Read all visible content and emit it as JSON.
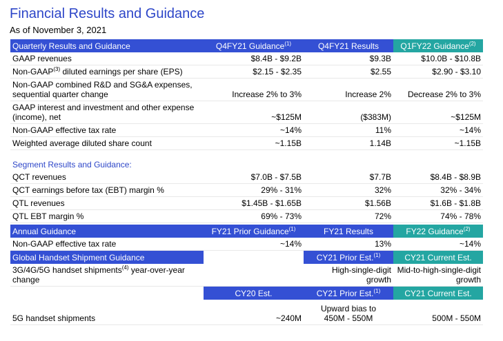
{
  "title": "Financial Results and Guidance",
  "subtitle": "As of November 3, 2021",
  "quarterly": {
    "header": [
      "Quarterly Results and Guidance",
      [
        "Q4FY21 Guidance",
        {
          "sup": "(1)"
        }
      ],
      "Q4FY21 Results",
      [
        "Q1FY22 Guidance",
        {
          "sup": "(2)"
        }
      ]
    ],
    "rows": [
      [
        "GAAP revenues",
        "$8.4B - $9.2B",
        "$9.3B",
        "$10.0B - $10.8B"
      ],
      [
        [
          "Non-GAAP",
          {
            "sup": "(3)"
          },
          " diluted earnings per share (EPS)"
        ],
        "$2.15 - $2.35",
        "$2.55",
        "$2.90 - $3.10"
      ],
      [
        "Non-GAAP combined R&D and SG&A expenses,\nsequential quarter change",
        "Increase 2% to 3%",
        "Increase 2%",
        "Decrease 2% to 3%"
      ],
      [
        "GAAP interest and investment and other expense\n(income), net",
        "~$125M",
        "($383M)",
        "~$125M"
      ],
      [
        "Non-GAAP effective tax rate",
        "~14%",
        "11%",
        "~14%"
      ],
      [
        "Weighted average diluted share count",
        "~1.15B",
        "1.14B",
        "~1.15B"
      ]
    ]
  },
  "segment": {
    "heading": "Segment Results and Guidance:",
    "rows": [
      [
        "QCT revenues",
        "$7.0B - $7.5B",
        "$7.7B",
        "$8.4B - $8.9B"
      ],
      [
        "QCT earnings before tax (EBT) margin %",
        "29% - 31%",
        "32%",
        "32% - 34%"
      ],
      [
        "QTL revenues",
        "$1.45B - $1.65B",
        "$1.56B",
        "$1.6B - $1.8B"
      ],
      [
        "QTL EBT margin %",
        "69% - 73%",
        "72%",
        "74% - 78%"
      ]
    ]
  },
  "annual": {
    "header": [
      "Annual Guidance",
      [
        "FY21 Prior Guidance",
        {
          "sup": "(1)"
        }
      ],
      "FY21 Results",
      [
        "FY22 Guidance",
        {
          "sup": "(2)"
        }
      ]
    ],
    "rows": [
      [
        "Non-GAAP effective tax rate",
        "~14%",
        "13%",
        "~14%"
      ]
    ]
  },
  "handset": {
    "header": [
      "Global Handset Shipment Guidance",
      null,
      [
        "CY21 Prior Est.",
        {
          "sup": "(1)"
        }
      ],
      "CY21 Current Est."
    ],
    "rows": [
      [
        [
          "3G/4G/5G handset shipments",
          {
            "sup": "(4)"
          },
          " year-over-year\nchange"
        ],
        null,
        "High-single-digit growth",
        "Mid-to-high-single-digit\ngrowth"
      ]
    ],
    "subheader": [
      null,
      "CY20 Est.",
      [
        "CY21 Prior Est.",
        {
          "sup": "(1)"
        }
      ],
      "CY21 Current Est."
    ],
    "rows2": [
      [
        "5G handset shipments",
        "~240M",
        "Upward bias to\n450M - 550M",
        "500M - 550M"
      ]
    ]
  }
}
